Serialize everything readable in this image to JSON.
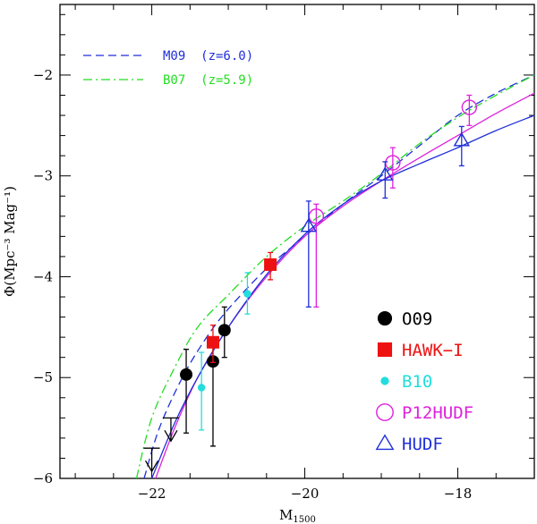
{
  "chart_data": {
    "type": "scatter",
    "title": "",
    "xlabel_main": "M",
    "xlabel_sub": "1500",
    "ylabel": "Φ(Mpc⁻³ Mag⁻¹)",
    "xlim": [
      -23.2,
      -17.0
    ],
    "ylim": [
      -6.0,
      -1.3
    ],
    "x_ticks": [
      -22,
      -20,
      -18
    ],
    "x_tick_labels": [
      "−22",
      "−20",
      "−18"
    ],
    "y_ticks": [
      -6,
      -5,
      -4,
      -3,
      -2
    ],
    "y_tick_labels": [
      "−6",
      "−5",
      "−4",
      "−3",
      "−2"
    ],
    "curve_legend": [
      {
        "label": "M09  (z=6.0)",
        "color": "#1f2fd8",
        "style": "dashed"
      },
      {
        "label": "B07  (z=5.9)",
        "color": "#22dd22",
        "style": "dashdot"
      }
    ],
    "curves": [
      {
        "name": "M09",
        "color": "#1f2fd8",
        "style": "dashed",
        "points": [
          [
            -22.1,
            -6.0
          ],
          [
            -21.9,
            -5.5
          ],
          [
            -21.6,
            -5.0
          ],
          [
            -21.3,
            -4.62
          ],
          [
            -21.0,
            -4.32
          ],
          [
            -20.5,
            -3.92
          ],
          [
            -20.0,
            -3.6
          ],
          [
            -19.5,
            -3.28
          ],
          [
            -19.0,
            -3.0
          ],
          [
            -18.5,
            -2.7
          ],
          [
            -18.0,
            -2.4
          ],
          [
            -17.5,
            -2.18
          ],
          [
            -17.0,
            -2.0
          ]
        ]
      },
      {
        "name": "B07",
        "color": "#22dd22",
        "style": "dashdot",
        "points": [
          [
            -22.2,
            -6.0
          ],
          [
            -22.0,
            -5.4
          ],
          [
            -21.7,
            -4.9
          ],
          [
            -21.4,
            -4.5
          ],
          [
            -21.0,
            -4.18
          ],
          [
            -20.5,
            -3.8
          ],
          [
            -20.0,
            -3.5
          ],
          [
            -19.5,
            -3.25
          ],
          [
            -19.0,
            -2.98
          ],
          [
            -18.5,
            -2.68
          ],
          [
            -18.0,
            -2.42
          ],
          [
            -17.5,
            -2.2
          ],
          [
            -17.0,
            -2.0
          ]
        ]
      },
      {
        "name": "P12HUDF fit",
        "color": "#dd22dd",
        "style": "solid",
        "points": [
          [
            -21.95,
            -6.0
          ],
          [
            -21.7,
            -5.5
          ],
          [
            -21.4,
            -5.0
          ],
          [
            -21.0,
            -4.5
          ],
          [
            -20.5,
            -4.0
          ],
          [
            -20.0,
            -3.6
          ],
          [
            -19.5,
            -3.3
          ],
          [
            -19.0,
            -3.05
          ],
          [
            -18.5,
            -2.82
          ],
          [
            -18.0,
            -2.6
          ],
          [
            -17.5,
            -2.38
          ],
          [
            -17.0,
            -2.18
          ]
        ]
      },
      {
        "name": "HUDF fit",
        "color": "#1f2fd8",
        "style": "solid",
        "points": [
          [
            -22.0,
            -6.0
          ],
          [
            -21.7,
            -5.45
          ],
          [
            -21.4,
            -5.0
          ],
          [
            -21.0,
            -4.5
          ],
          [
            -20.5,
            -3.98
          ],
          [
            -20.0,
            -3.58
          ],
          [
            -19.5,
            -3.28
          ],
          [
            -19.0,
            -3.05
          ],
          [
            -18.5,
            -2.88
          ],
          [
            -18.0,
            -2.72
          ],
          [
            -17.5,
            -2.55
          ],
          [
            -17.0,
            -2.4
          ]
        ]
      }
    ],
    "series": [
      {
        "name": "O09",
        "label": "O09",
        "color": "#000000",
        "marker": "filled-circle",
        "points": [
          {
            "x": -21.55,
            "y": -4.97,
            "lo": -5.55,
            "hi": -4.72
          },
          {
            "x": -21.2,
            "y": -4.84,
            "lo": -5.68,
            "hi": -4.6
          },
          {
            "x": -21.05,
            "y": -4.53,
            "lo": -4.8,
            "hi": -4.3
          }
        ]
      },
      {
        "name": "HAWK-I",
        "label": "HAWK−I",
        "color": "#ee1111",
        "marker": "filled-square",
        "points": [
          {
            "x": -21.2,
            "y": -4.65,
            "lo": -4.85,
            "hi": -4.48
          },
          {
            "x": -20.45,
            "y": -3.88,
            "lo": -4.03,
            "hi": -3.76
          }
        ]
      },
      {
        "name": "B10",
        "label": "B10",
        "color": "#22dddd",
        "marker": "filled-dot",
        "points": [
          {
            "x": -21.35,
            "y": -5.1,
            "lo": -5.52,
            "hi": -4.75
          },
          {
            "x": -20.75,
            "y": -4.17,
            "lo": -4.37,
            "hi": -3.96
          }
        ]
      },
      {
        "name": "P12HUDF",
        "label": "P12HUDF",
        "color": "#dd22dd",
        "marker": "open-circle",
        "points": [
          {
            "x": -19.85,
            "y": -3.4,
            "lo": -4.3,
            "hi": -3.28
          },
          {
            "x": -18.85,
            "y": -2.87,
            "lo": -3.12,
            "hi": -2.72
          },
          {
            "x": -17.85,
            "y": -2.32,
            "lo": -2.5,
            "hi": -2.2
          }
        ]
      },
      {
        "name": "HUDF",
        "label": "HUDF",
        "color": "#1f2fd8",
        "marker": "open-triangle",
        "points": [
          {
            "x": -19.95,
            "y": -3.5,
            "lo": -4.3,
            "hi": -3.25
          },
          {
            "x": -18.95,
            "y": -2.99,
            "lo": -3.22,
            "hi": -2.86
          },
          {
            "x": -17.95,
            "y": -2.65,
            "lo": -2.9,
            "hi": -2.51
          }
        ]
      }
    ],
    "upper_limits": [
      {
        "x": -22.0,
        "y": -5.7,
        "color": "#000000"
      },
      {
        "x": -21.75,
        "y": -5.4,
        "color": "#000000"
      }
    ],
    "marker_legend": [
      {
        "label": "O09",
        "color": "#000000",
        "marker": "filled-circle"
      },
      {
        "label": "HAWK−I",
        "color": "#ee1111",
        "marker": "filled-square"
      },
      {
        "label": "B10",
        "color": "#22dddd",
        "marker": "filled-dot"
      },
      {
        "label": "P12HUDF",
        "color": "#dd22dd",
        "marker": "open-circle"
      },
      {
        "label": "HUDF",
        "color": "#1f2fd8",
        "marker": "open-triangle"
      }
    ]
  }
}
